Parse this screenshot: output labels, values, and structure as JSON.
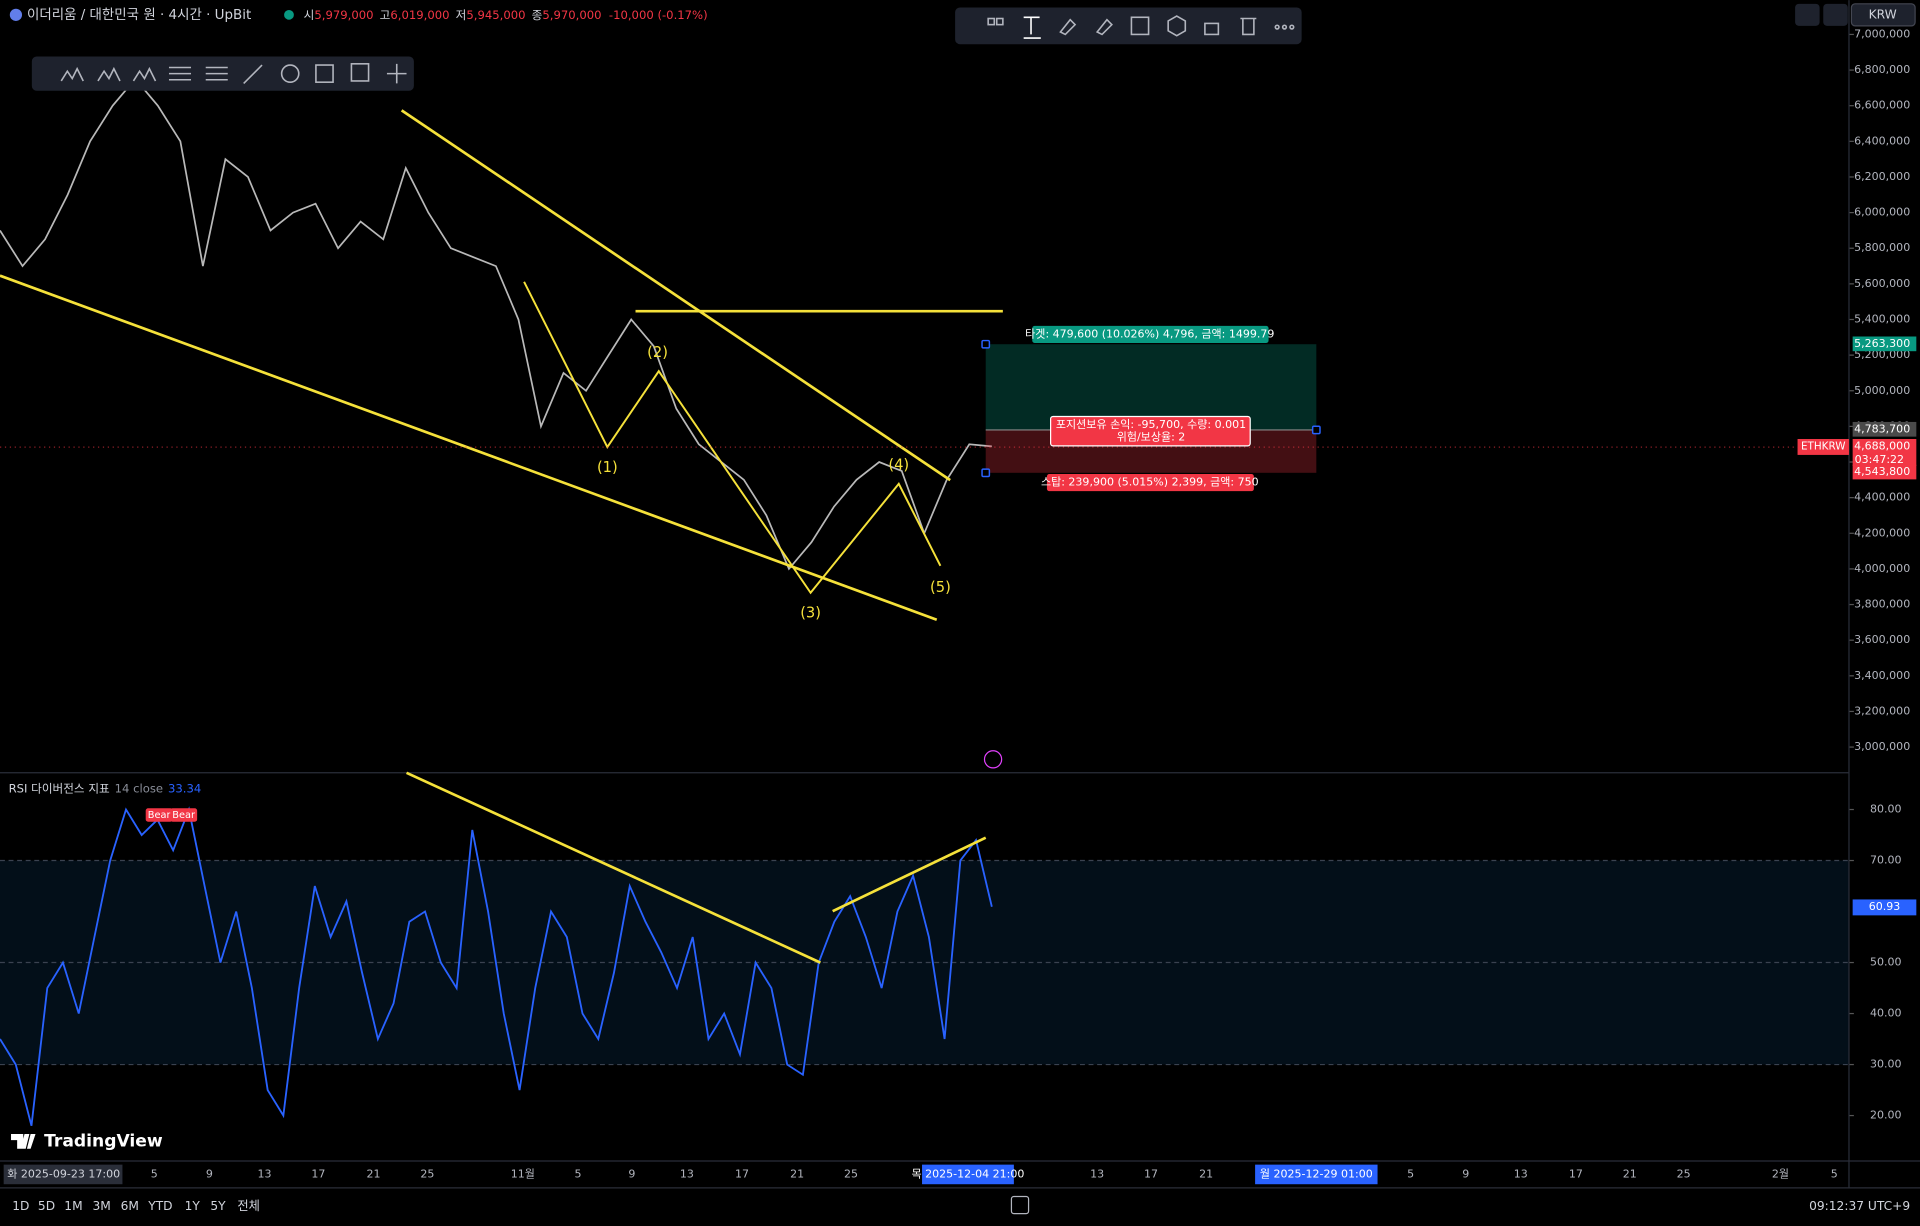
{
  "header": {
    "symbol": "이더리움 / 대한민국 원 · 4시간 · UpBit",
    "ohlc": [
      {
        "key": "시",
        "value": "5,979,000"
      },
      {
        "key": "고",
        "value": "6,019,000"
      },
      {
        "key": "저",
        "value": "5,945,000"
      },
      {
        "key": "종",
        "value": "5,970,000"
      }
    ],
    "change": "-10,000 (-0.17%)",
    "currency": "KRW"
  },
  "chart_data": [
    {
      "type": "line",
      "color": "#b9b9b9",
      "values": [
        5900000,
        5700000,
        5850000,
        6100000,
        6400000,
        6600000,
        6750000,
        6600000,
        6400000,
        5700000,
        6300000,
        6200000,
        5900000,
        6000000,
        6050000,
        5800000,
        5950000,
        5850000,
        6250000,
        6000000,
        5800000,
        5750000,
        5700000,
        5400000,
        4800000,
        5100000,
        5000000,
        5200000,
        5400000,
        5250000,
        4900000,
        4700000,
        4600000,
        4500000,
        4300000,
        4000000,
        4150000,
        4350000,
        4500000,
        4600000,
        4550000,
        4200000,
        4500000,
        4700000,
        4688000
      ],
      "ylim": [
        2862500,
        7192500
      ],
      "yticks": [
        {
          "value": 7000000,
          "label": "7,000,000"
        },
        {
          "value": 6800000,
          "label": "6,800,000"
        },
        {
          "value": 6600000,
          "label": "6,600,000"
        },
        {
          "value": 6400000,
          "label": "6,400,000"
        },
        {
          "value": 6200000,
          "label": "6,200,000"
        },
        {
          "value": 6000000,
          "label": "6,000,000"
        },
        {
          "value": 5800000,
          "label": "5,800,000"
        },
        {
          "value": 5600000,
          "label": "5,600,000"
        },
        {
          "value": 5400000,
          "label": "5,400,000"
        },
        {
          "value": 5200000,
          "label": "5,200,000"
        },
        {
          "value": 5000000,
          "label": "5,000,000"
        },
        {
          "value": 4800000,
          "label": "4,800,000"
        },
        {
          "value": 4600000,
          "label": "4,600,000"
        },
        {
          "value": 4400000,
          "label": "4,400,000"
        },
        {
          "value": 4200000,
          "label": "4,200,000"
        },
        {
          "value": 4000000,
          "label": "4,000,000"
        },
        {
          "value": 3800000,
          "label": "3,800,000"
        },
        {
          "value": 3600000,
          "label": "3,600,000"
        },
        {
          "value": 3400000,
          "label": "3,400,000"
        },
        {
          "value": 3200000,
          "label": "3,200,000"
        },
        {
          "value": 3000000,
          "label": "3,000,000"
        }
      ],
      "badges": [
        {
          "value": 5263300,
          "label": "5,263,300",
          "color": "#089981"
        },
        {
          "value": 4783700,
          "label": "4,783,700",
          "color": "#4a4a4a"
        },
        {
          "value": 4688000,
          "label": "4,688,000",
          "sub": "03:47:22",
          "color": "#f23645"
        },
        {
          "value": 4543800,
          "label": "4,543,800",
          "color": "#f23645"
        }
      ],
      "symbol_badge": "ETHKRW",
      "annotations": [
        "(1)",
        "(2)",
        "(3)",
        "(4)",
        "(5)"
      ],
      "position": {
        "target": "타겟: 479,600 (10.026%) 4,796, 금액: 1499.79",
        "pnl": "포지션보유 손익: -95,700, 수량: 0.001",
        "ratio": "위험/보상율: 2",
        "stop": "스탑: 239,900 (5.015%) 2,399, 금액: 750"
      }
    },
    {
      "type": "line",
      "title": "RSI 다이버전스 지표",
      "params": "14 close",
      "current": "33.34",
      "color": "#2962ff",
      "values": [
        35,
        30,
        18,
        45,
        50,
        40,
        55,
        70,
        80,
        75,
        78,
        72,
        80,
        65,
        50,
        60,
        45,
        25,
        20,
        45,
        65,
        55,
        62,
        48,
        35,
        42,
        58,
        60,
        50,
        45,
        76,
        60,
        40,
        25,
        45,
        60,
        55,
        40,
        35,
        48,
        65,
        58,
        52,
        45,
        55,
        35,
        40,
        32,
        50,
        45,
        30,
        28,
        50,
        58,
        63,
        55,
        45,
        60,
        67,
        55,
        35,
        70,
        74,
        60.93
      ],
      "value_labels": {
        "63": "60.93"
      },
      "ylim": [
        11.1,
        87.2
      ],
      "yticks": [
        {
          "value": 80,
          "label": "80.00"
        },
        {
          "value": 70,
          "label": "70.00"
        },
        {
          "value": 50,
          "label": "50.00"
        },
        {
          "value": 40,
          "label": "40.00"
        },
        {
          "value": 30,
          "label": "30.00"
        },
        {
          "value": 20,
          "label": "20.00"
        }
      ],
      "band": [
        30,
        70
      ],
      "midline": 50,
      "signals": [
        "Bear",
        "Bear"
      ]
    }
  ],
  "time_axis": {
    "start": "화 2025-09-23  17:00",
    "labels": [
      "5",
      "9",
      "13",
      "17",
      "21",
      "25",
      "11월",
      "5",
      "9",
      "13",
      "17",
      "21",
      "25",
      "13",
      "17",
      "21",
      "5",
      "9",
      "13",
      "17",
      "21",
      "25",
      "2월",
      "5"
    ],
    "highlights": [
      "목 2025-12-04  21:00",
      "월 2025-12-29  01:00"
    ]
  },
  "logo": "TradingView",
  "bottom_bar": {
    "ranges": [
      "1D",
      "5D",
      "1M",
      "3M",
      "6M",
      "YTD",
      "1Y",
      "5Y",
      "전체"
    ],
    "clock": "09:12:37 UTC+9"
  }
}
